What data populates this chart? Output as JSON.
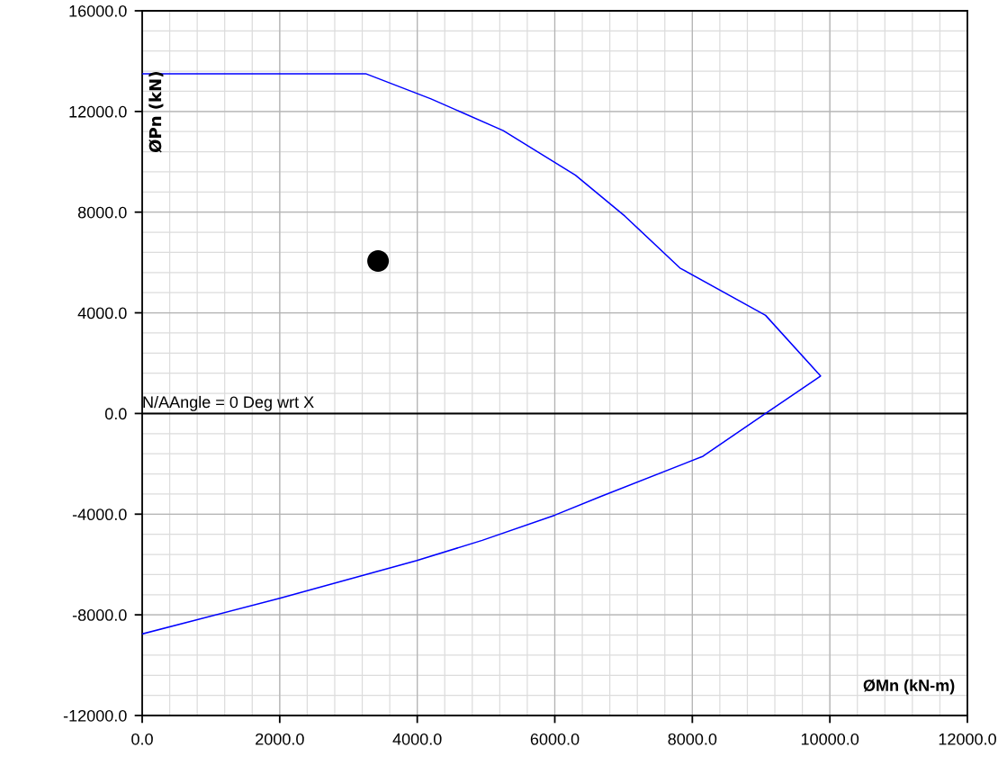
{
  "chart_data": {
    "type": "line",
    "xlabel": "ØMn (kN-m)",
    "ylabel": "ØPn (kN)",
    "annotations": [
      "N/AAngle = 0 Deg wrt X"
    ],
    "series": [
      {
        "color": "#0000ff",
        "x": [
          0,
          3250,
          4200,
          5250,
          6300,
          7020,
          7820,
          9065,
          9865,
          9065,
          8155,
          6665,
          6000,
          4945,
          3985,
          2000,
          0
        ],
        "values": [
          13500,
          13500,
          12500,
          11240,
          9470,
          7840,
          5780,
          3900,
          1490,
          0,
          -1700,
          -3300,
          -4040,
          -5040,
          -5850,
          -7340,
          -8760
        ],
        "marker": "none"
      },
      {
        "type": "scatter",
        "color": "#000000",
        "x": [
          3430
        ],
        "values": [
          6060
        ],
        "marker": "circle"
      }
    ],
    "xlim": [
      0,
      12000
    ],
    "ylim": [
      -12000,
      16000
    ],
    "xticks": [
      {
        "value": 0,
        "label": "0.0"
      },
      {
        "value": 2000,
        "label": "2000.0"
      },
      {
        "value": 4000,
        "label": "4000.0"
      },
      {
        "value": 6000,
        "label": "6000.0"
      },
      {
        "value": 8000,
        "label": "8000.0"
      },
      {
        "value": 10000,
        "label": "10000.0"
      },
      {
        "value": 12000,
        "label": "12000.0"
      }
    ],
    "yticks": [
      {
        "value": -12000,
        "label": "-12000.0"
      },
      {
        "value": -8000,
        "label": "-8000.0"
      },
      {
        "value": -4000,
        "label": "-4000.0"
      },
      {
        "value": 0,
        "label": "0.0"
      },
      {
        "value": 4000,
        "label": "4000.0"
      },
      {
        "value": 8000,
        "label": "8000.0"
      },
      {
        "value": 12000,
        "label": "12000.0"
      },
      {
        "value": 16000,
        "label": "16000.0"
      }
    ],
    "ref_lines": [
      {
        "axis": "y",
        "value": 0,
        "color": "#000000"
      }
    ],
    "grid": true
  }
}
